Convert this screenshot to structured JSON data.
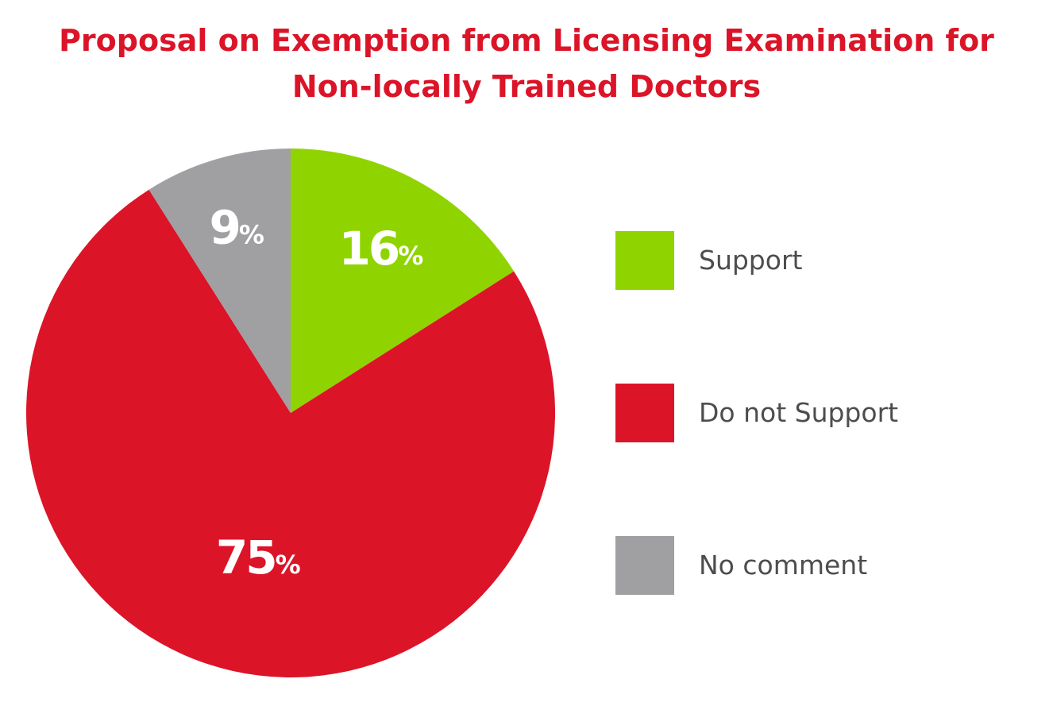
{
  "chart_data": {
    "type": "pie",
    "title_lines": [
      "Proposal on Exemption from Licensing Examination for",
      "Non-locally Trained Doctors"
    ],
    "slices": [
      {
        "label": "Support",
        "value": 16,
        "value_text": "16",
        "unit": "%",
        "color": "#8fd400"
      },
      {
        "label": "Do not Support",
        "value": 75,
        "value_text": "75",
        "unit": "%",
        "color": "#dc1428"
      },
      {
        "label": "No comment",
        "value": 9,
        "value_text": "9",
        "unit": "%",
        "color": "#a0a0a2"
      }
    ],
    "start_angle": "12 o'clock",
    "direction": "clockwise",
    "legend_position": "right",
    "value_label_color": "#ffffff"
  }
}
